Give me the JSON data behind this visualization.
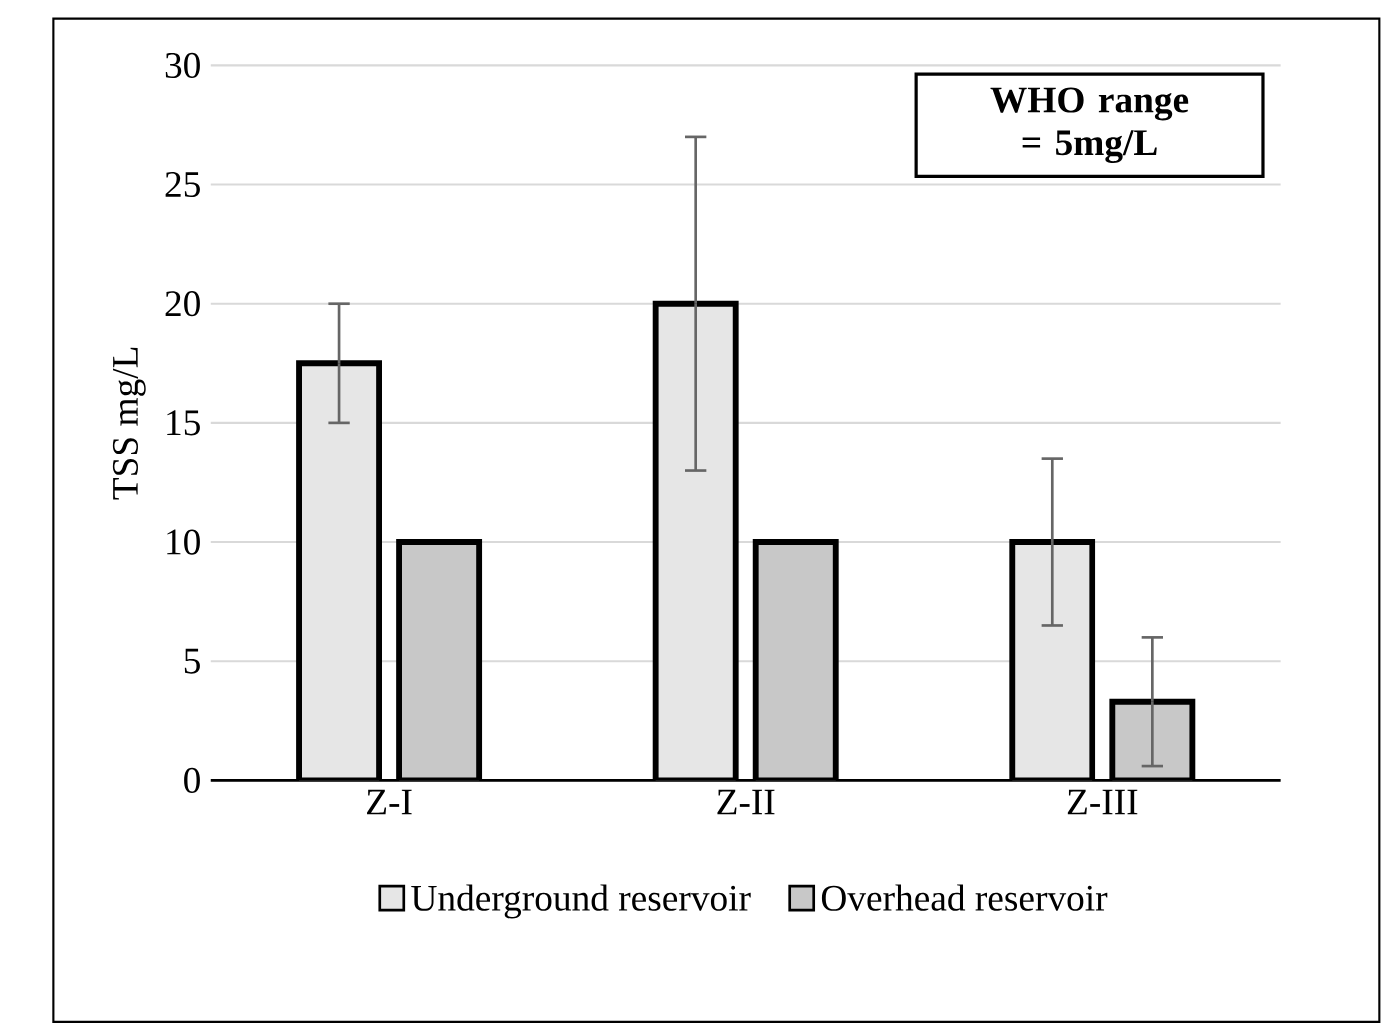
{
  "chart_data": {
    "type": "bar",
    "ylabel": "TSS mg/L",
    "categories": [
      "Z-I",
      "Z-II",
      "Z-III"
    ],
    "series": [
      {
        "name": "Underground reservoir",
        "color": "#e6e6e6",
        "values": [
          17.5,
          20,
          10
        ],
        "errors": [
          2.5,
          7,
          3.5
        ]
      },
      {
        "name": "Overhead reservoir",
        "color": "#c8c8c8",
        "values": [
          10,
          10,
          3.3
        ],
        "errors": [
          null,
          null,
          2.7
        ]
      }
    ],
    "ylim": [
      0,
      30
    ],
    "yticks": [
      0,
      5,
      10,
      15,
      20,
      25,
      30
    ],
    "grid": "y",
    "legend": "bottom",
    "annotations": [
      "WHO range = 5mg/L"
    ]
  }
}
